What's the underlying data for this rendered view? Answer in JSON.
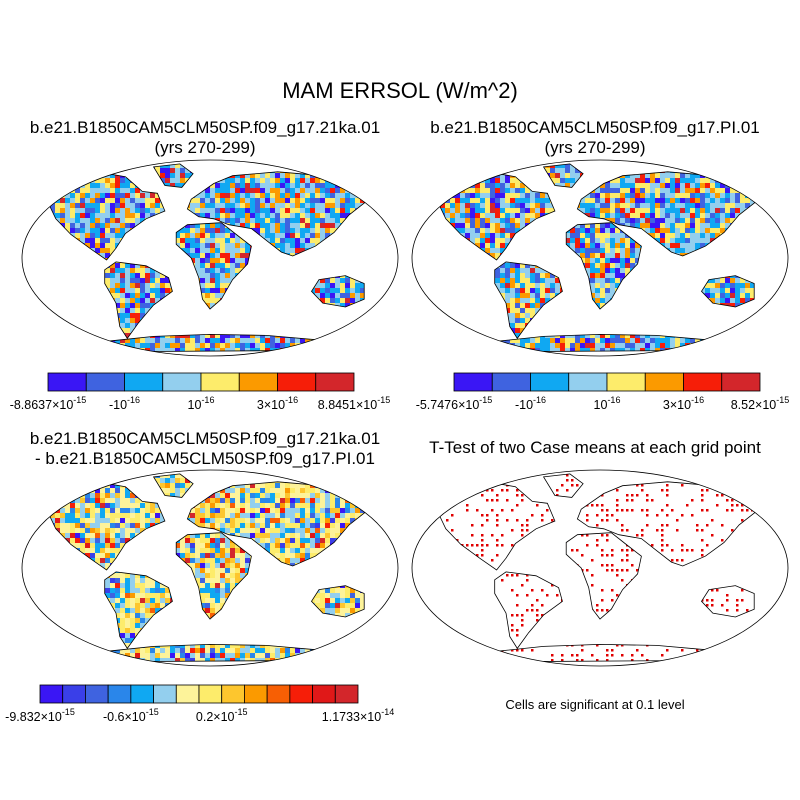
{
  "title": "MAM ERRSOL (W/m^2)",
  "panels": [
    {
      "id": "case1",
      "title_lines": [
        "b.e21.B1850CAM5CLM50SP.f09_g17.21ka.01",
        "(yrs 270-299)"
      ],
      "colors": [
        "#3a16f5",
        "#3f63e0",
        "#10a8f2",
        "#93cfee",
        "#fdec6b",
        "#fb9a00",
        "#f61e08",
        "#d3262b"
      ],
      "labels": [
        {
          "pos": 0,
          "m": "-8.8637",
          "e": "-15"
        },
        {
          "pos": 2,
          "m": "-10",
          "e": "-16",
          "plain": true
        },
        {
          "pos": 4,
          "m": "10",
          "e": "-16",
          "plain": true
        },
        {
          "pos": 6,
          "m": "3",
          "e": "-16"
        },
        {
          "pos": 8,
          "m": "8.8451",
          "e": "-15"
        }
      ]
    },
    {
      "id": "case2",
      "title_lines": [
        "b.e21.B1850CAM5CLM50SP.f09_g17.PI.01",
        "(yrs 270-299)"
      ],
      "colors": [
        "#3a16f5",
        "#3f63e0",
        "#10a8f2",
        "#93cfee",
        "#fdec6b",
        "#fb9a00",
        "#f61e08",
        "#d3262b"
      ],
      "labels": [
        {
          "pos": 0,
          "m": "-5.7476",
          "e": "-15"
        },
        {
          "pos": 2,
          "m": "-10",
          "e": "-16",
          "plain": true
        },
        {
          "pos": 4,
          "m": "10",
          "e": "-16",
          "plain": true
        },
        {
          "pos": 6,
          "m": "3",
          "e": "-16"
        },
        {
          "pos": 8,
          "m": "8.52",
          "e": "-15"
        }
      ]
    },
    {
      "id": "diff",
      "title_lines": [
        "b.e21.B1850CAM5CLM50SP.f09_g17.21ka.01",
        "- b.e21.B1850CAM5CLM50SP.f09_g17.PI.01"
      ],
      "colors": [
        "#3a16f5",
        "#3a3fe8",
        "#3f63e0",
        "#2a86ea",
        "#10a8f2",
        "#93cfee",
        "#fdf39a",
        "#fdec6b",
        "#fdc62e",
        "#fb9a00",
        "#f75f04",
        "#f61e08",
        "#e01818",
        "#d3262b"
      ],
      "labels": [
        {
          "pos": 0,
          "m": "-9.832",
          "e": "-15"
        },
        {
          "pos": 4,
          "m": "-0.6",
          "e": "-15"
        },
        {
          "pos": 8,
          "m": "0.2",
          "e": "-15"
        },
        {
          "pos": 14,
          "m": "1.1733",
          "e": "-14"
        }
      ]
    },
    {
      "id": "ttest",
      "title_lines": [
        "T-Test of two Case means at each grid point"
      ],
      "note": "Cells are significant at 0.1 level",
      "sig_color": "#e00000"
    }
  ],
  "chart_data": [
    {
      "type": "heatmap",
      "title": "b.e21.B1850CAM5CLM50SP.f09_g17.21ka.01 (yrs 270-299)",
      "colorbar_range": [
        -8.8637e-15,
        8.8451e-15
      ],
      "colorbar_ticks": [
        -8.8637e-15,
        -1e-16,
        1e-16,
        3e-16,
        8.8451e-15
      ]
    },
    {
      "type": "heatmap",
      "title": "b.e21.B1850CAM5CLM50SP.f09_g17.PI.01 (yrs 270-299)",
      "colorbar_range": [
        -5.7476e-15,
        8.52e-15
      ],
      "colorbar_ticks": [
        -5.7476e-15,
        -1e-16,
        1e-16,
        3e-16,
        8.52e-15
      ]
    },
    {
      "type": "heatmap",
      "title": "b.e21.B1850CAM5CLM50SP.f09_g17.21ka.01 - b.e21.B1850CAM5CLM50SP.f09_g17.PI.01",
      "colorbar_range": [
        -9.832e-15,
        1.1733e-14
      ],
      "colorbar_ticks": [
        -9.832e-15,
        -6e-16,
        2e-16,
        1.1733e-14
      ]
    },
    {
      "type": "heatmap",
      "title": "T-Test of two Case means at each grid point",
      "significance_level": 0.1
    }
  ]
}
